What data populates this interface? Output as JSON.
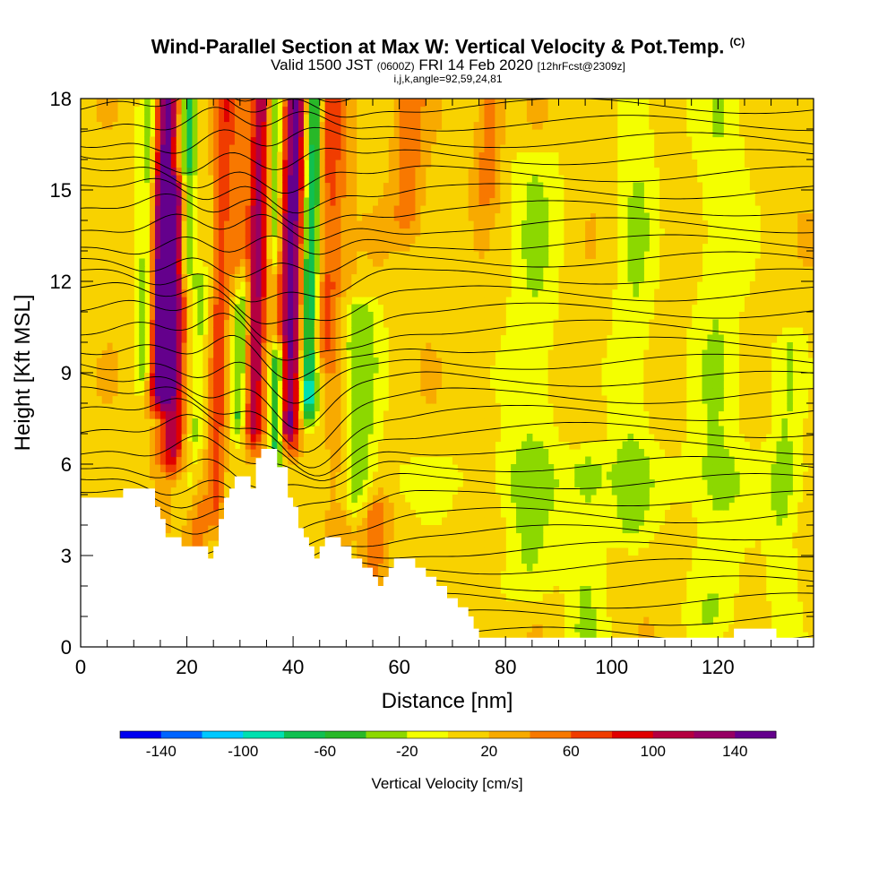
{
  "title": {
    "main": "Wind-Parallel Section at Max W: Vertical Velocity & Pot.Temp.",
    "copyright": "(C)",
    "valid_prefix": "Valid 1500 JST",
    "valid_utc": "(0600Z)",
    "valid_date": "FRI 14 Feb 2020",
    "forecast": "[12hrFcst@2309z]",
    "indices": "i,j,k,angle=92,59,24,81"
  },
  "chart_data": {
    "type": "heatmap",
    "xlabel": "Distance [nm]",
    "ylabel": "Height [Kft MSL]",
    "xlim": [
      0,
      138
    ],
    "ylim": [
      0,
      18
    ],
    "x_ticks": [
      "0",
      "20",
      "40",
      "60",
      "80",
      "100",
      "120"
    ],
    "y_ticks": [
      "0",
      "3",
      "6",
      "9",
      "12",
      "15",
      "18"
    ],
    "colorbar": {
      "title": "Vertical Velocity [cm/s]",
      "labels": [
        "-140",
        "-100",
        "-60",
        "-20",
        "20",
        "60",
        "100",
        "140"
      ],
      "colors": [
        "#0000f0",
        "#0064ff",
        "#00c8ff",
        "#00e0b0",
        "#10c050",
        "#28b828",
        "#8cd800",
        "#f4ff00",
        "#f8d200",
        "#f8aa00",
        "#f87800",
        "#f03c00",
        "#e00000",
        "#b40040",
        "#960064",
        "#64008c"
      ]
    },
    "terrain_kft": [
      [
        0,
        4.9
      ],
      [
        7,
        4.9
      ],
      [
        8,
        5.2
      ],
      [
        13,
        5.2
      ],
      [
        14,
        4.6
      ],
      [
        15,
        4.2
      ],
      [
        16,
        3.6
      ],
      [
        18,
        3.6
      ],
      [
        19,
        3.3
      ],
      [
        23,
        3.3
      ],
      [
        24,
        2.9
      ],
      [
        25,
        3.3
      ],
      [
        26,
        4.2
      ],
      [
        27,
        4.9
      ],
      [
        28,
        5.2
      ],
      [
        29,
        5.6
      ],
      [
        31,
        5.6
      ],
      [
        32,
        5.2
      ],
      [
        33,
        6.2
      ],
      [
        34,
        6.5
      ],
      [
        36,
        6.5
      ],
      [
        37,
        5.9
      ],
      [
        39,
        4.9
      ],
      [
        40,
        4.6
      ],
      [
        41,
        3.9
      ],
      [
        42,
        3.6
      ],
      [
        43,
        3.3
      ],
      [
        44,
        2.9
      ],
      [
        45,
        3.3
      ],
      [
        46,
        3.6
      ],
      [
        48,
        3.6
      ],
      [
        49,
        3.3
      ],
      [
        51,
        2.9
      ],
      [
        53,
        2.6
      ],
      [
        55,
        2.3
      ],
      [
        56,
        2.0
      ],
      [
        57,
        2.3
      ],
      [
        58,
        2.6
      ],
      [
        59,
        2.9
      ],
      [
        62,
        2.9
      ],
      [
        63,
        2.6
      ],
      [
        65,
        2.3
      ],
      [
        67,
        2.0
      ],
      [
        69,
        1.6
      ],
      [
        71,
        1.3
      ],
      [
        73,
        1.0
      ],
      [
        74,
        0.6
      ],
      [
        75,
        0.3
      ],
      [
        122,
        0.3
      ],
      [
        123,
        0.6
      ],
      [
        130,
        0.6
      ],
      [
        131,
        0.3
      ],
      [
        138,
        0.3
      ]
    ],
    "updraft_cores": [
      {
        "x_nm": 15,
        "ytop_kft": 18,
        "ybot_kft": 8.6,
        "peak_cms": 160,
        "width_nm": 2.4
      },
      {
        "x_nm": 17.5,
        "ytop_kft": 15,
        "ybot_kft": 6.5,
        "peak_cms": 100,
        "width_nm": 2.5
      },
      {
        "x_nm": 26,
        "ytop_kft": 18,
        "ybot_kft": 4.5,
        "peak_cms": 60,
        "width_nm": 1.6
      },
      {
        "x_nm": 33,
        "ytop_kft": 18,
        "ybot_kft": 7.2,
        "peak_cms": 110,
        "width_nm": 1.8
      },
      {
        "x_nm": 39.5,
        "ytop_kft": 18,
        "ybot_kft": 7.2,
        "peak_cms": 140,
        "width_nm": 2.2
      },
      {
        "x_nm": 46,
        "ytop_kft": 18,
        "ybot_kft": 10.0,
        "peak_cms": 60,
        "width_nm": 3.5
      },
      {
        "x_nm": 49,
        "ytop_kft": 9,
        "ybot_kft": 4.0,
        "peak_cms": 40,
        "width_nm": 2.5
      },
      {
        "x_nm": 56,
        "ytop_kft": 4.6,
        "ybot_kft": 2.2,
        "peak_cms": 40,
        "width_nm": 2.0
      },
      {
        "x_nm": 61,
        "ytop_kft": 18,
        "ybot_kft": 14.0,
        "peak_cms": 40,
        "width_nm": 3.0
      },
      {
        "x_nm": 76,
        "ytop_kft": 18,
        "ybot_kft": 15.0,
        "peak_cms": 40,
        "width_nm": 2.5
      },
      {
        "x_nm": 23,
        "ytop_kft": 6.0,
        "ybot_kft": 3.3,
        "peak_cms": 40,
        "width_nm": 2.0
      },
      {
        "x_nm": 29,
        "ytop_kft": 18,
        "ybot_kft": 12.0,
        "peak_cms": 40,
        "width_nm": 2.0
      }
    ],
    "downdraft_cores": [
      {
        "x_nm": 43,
        "ytop_kft": 18,
        "ybot_kft": 8.0,
        "peak_cms": -120,
        "width_nm": 1.8
      },
      {
        "x_nm": 37.3,
        "ytop_kft": 9.5,
        "ybot_kft": 6.5,
        "peak_cms": -100,
        "width_nm": 1.4
      },
      {
        "x_nm": 12.5,
        "ytop_kft": 18,
        "ybot_kft": 9.0,
        "peak_cms": -70,
        "width_nm": 2.2
      },
      {
        "x_nm": 19.5,
        "ytop_kft": 18,
        "ybot_kft": 12.5,
        "peak_cms": -80,
        "width_nm": 1.5
      },
      {
        "x_nm": 22,
        "ytop_kft": 12.0,
        "ybot_kft": 5.5,
        "peak_cms": -40,
        "width_nm": 2.0
      },
      {
        "x_nm": 30,
        "ytop_kft": 12.0,
        "ybot_kft": 7.5,
        "peak_cms": -60,
        "width_nm": 1.5
      },
      {
        "x_nm": 52,
        "ytop_kft": 11.0,
        "ybot_kft": 5.0,
        "peak_cms": -50,
        "width_nm": 4.0
      },
      {
        "x_nm": 36,
        "ytop_kft": 18,
        "ybot_kft": 13.0,
        "peak_cms": -60,
        "width_nm": 1.2
      },
      {
        "x_nm": 85,
        "ytop_kft": 16,
        "ybot_kft": 2.0,
        "peak_cms": -30,
        "width_nm": 5
      },
      {
        "x_nm": 104,
        "ytop_kft": 18,
        "ybot_kft": 4.0,
        "peak_cms": -30,
        "width_nm": 4
      },
      {
        "x_nm": 120,
        "ytop_kft": 18,
        "ybot_kft": 1.0,
        "peak_cms": -30,
        "width_nm": 5
      },
      {
        "x_nm": 96,
        "ytop_kft": 6.0,
        "ybot_kft": 0.5,
        "peak_cms": -30,
        "width_nm": 4
      },
      {
        "x_nm": 133,
        "ytop_kft": 10,
        "ybot_kft": 0.5,
        "peak_cms": -30,
        "width_nm": 3
      }
    ],
    "theta_contour_count": 33
  }
}
